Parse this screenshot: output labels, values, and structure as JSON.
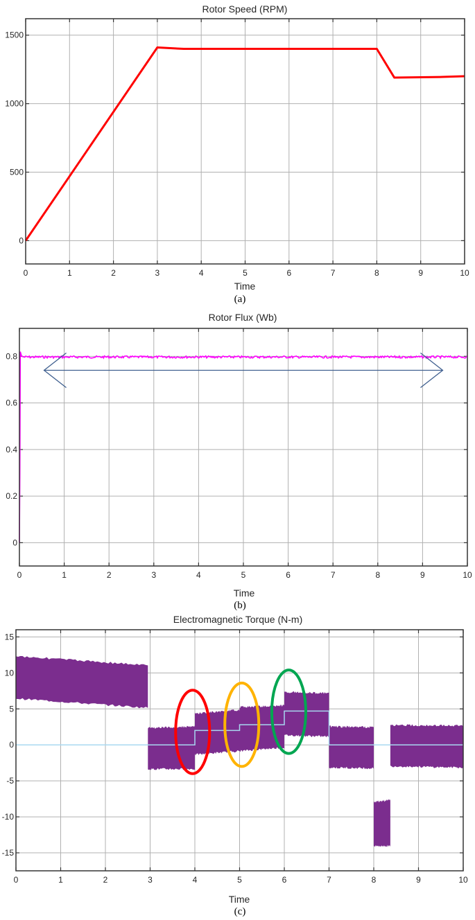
{
  "chart_data": [
    {
      "id": "a",
      "type": "line",
      "title": "Rotor Speed (RPM)",
      "xlabel": "Time",
      "ylabel": "",
      "caption": "(a)",
      "xlim": [
        0,
        10
      ],
      "ylim": [
        -170,
        1620
      ],
      "xticks": [
        0,
        1,
        2,
        3,
        4,
        5,
        6,
        7,
        8,
        9,
        10
      ],
      "yticks": [
        0,
        500,
        1000,
        1500
      ],
      "grid": true,
      "series": [
        {
          "name": "Rotor speed",
          "color": "#ff0000",
          "x": [
            0,
            3,
            3.6,
            8,
            8.4,
            9.5,
            10
          ],
          "y": [
            0,
            1410,
            1400,
            1400,
            1190,
            1195,
            1200
          ]
        }
      ]
    },
    {
      "id": "b",
      "type": "line",
      "title": "Rotor Flux (Wb)",
      "xlabel": "Time",
      "ylabel": "",
      "caption": "(b)",
      "xlim": [
        0,
        10
      ],
      "ylim": [
        -0.1,
        0.92
      ],
      "xticks": [
        0,
        1,
        2,
        3,
        4,
        5,
        6,
        7,
        8,
        9,
        10
      ],
      "yticks": [
        0,
        0.2,
        0.4,
        0.6,
        0.8
      ],
      "grid": true,
      "series": [
        {
          "name": "Rotor flux",
          "color": "#ff00ff",
          "x": [
            0,
            0.03,
            0.05,
            0.1,
            10
          ],
          "y": [
            0,
            0.82,
            0.8,
            0.795,
            0.8
          ]
        }
      ],
      "annotations": [
        {
          "type": "double-arrow",
          "from_x": 0.55,
          "to_x": 9.45,
          "y": 0.74,
          "color": "#3f5f8f"
        }
      ]
    },
    {
      "id": "c",
      "type": "area",
      "title": "Electromagnetic Torque (N-m)",
      "xlabel": "Time",
      "ylabel": "",
      "caption": "(c)",
      "xlim": [
        0,
        10
      ],
      "ylim": [
        -17.5,
        16
      ],
      "xticks": [
        0,
        1,
        2,
        3,
        4,
        5,
        6,
        7,
        8,
        9,
        10
      ],
      "yticks": [
        -15,
        -10,
        -5,
        0,
        5,
        10,
        15
      ],
      "grid": true,
      "series": [
        {
          "name": "Electromagnetic torque (band)",
          "color": "#7b2d8e",
          "segments": [
            {
              "x0": 0,
              "x1": 2.95,
              "upper_start": 12.5,
              "upper_end": 11.2,
              "lower_start": 6.3,
              "lower_end": 5.0
            },
            {
              "x0": 2.95,
              "x1": 4.0,
              "upper_start": 2.5,
              "upper_end": 2.7,
              "lower_start": -3.5,
              "lower_end": -3.5
            },
            {
              "x0": 4.0,
              "x1": 5.0,
              "upper_start": 4.5,
              "upper_end": 5.0,
              "lower_start": -1.5,
              "lower_end": -1.0
            },
            {
              "x0": 5.0,
              "x1": 6.0,
              "upper_start": 5.4,
              "upper_end": 5.6,
              "lower_start": -1.0,
              "lower_end": -0.5
            },
            {
              "x0": 6.0,
              "x1": 7.0,
              "upper_start": 7.5,
              "upper_end": 7.3,
              "lower_start": 1.2,
              "lower_end": 1.0
            },
            {
              "x0": 7.0,
              "x1": 8.0,
              "upper_start": 2.7,
              "upper_end": 2.6,
              "lower_start": -3.3,
              "lower_end": -3.4
            },
            {
              "x0": 8.0,
              "x1": 8.37,
              "upper_start": -7.8,
              "upper_end": -7.5,
              "lower_start": -14.2,
              "lower_end": -14.2
            },
            {
              "x0": 8.37,
              "x1": 10.0,
              "upper_start": 2.9,
              "upper_end": 2.8,
              "lower_start": -3.1,
              "lower_end": -3.3
            }
          ]
        },
        {
          "name": "Load torque (reference)",
          "color": "#a8d8f0",
          "x": [
            0,
            4.0,
            4.0,
            5.0,
            5.0,
            6.0,
            6.0,
            7.0,
            7.0,
            10
          ],
          "y": [
            0,
            0,
            2.0,
            2.0,
            2.8,
            2.8,
            4.7,
            4.7,
            0,
            0
          ]
        }
      ],
      "annotations": [
        {
          "type": "ellipse",
          "color": "#ff0000",
          "cx": 3.95,
          "cy": 1.8,
          "rx": 0.38,
          "ry": 5.8
        },
        {
          "type": "ellipse",
          "color": "#ffb300",
          "cx": 5.05,
          "cy": 2.8,
          "rx": 0.38,
          "ry": 5.8
        },
        {
          "type": "ellipse",
          "color": "#00a651",
          "cx": 6.1,
          "cy": 4.6,
          "rx": 0.38,
          "ry": 5.8
        }
      ]
    }
  ]
}
